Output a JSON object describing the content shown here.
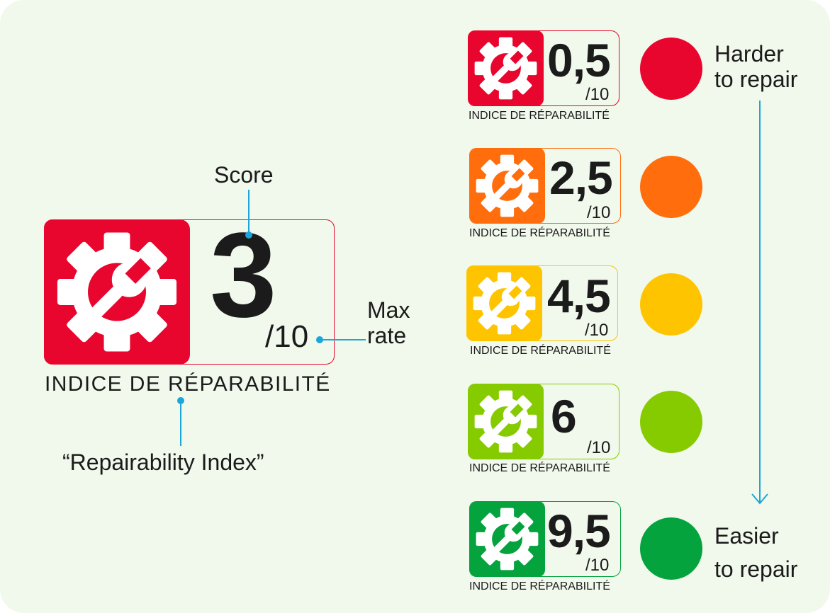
{
  "main_label": {
    "score": "3",
    "max": "/10",
    "caption": "INDICE DE RÉPARABILITÉ",
    "color": "#e8052e"
  },
  "annotations": {
    "score": "Score",
    "max_rate_line1": "Max",
    "max_rate_line2": "rate",
    "translation": "“Repairability Index”"
  },
  "scale_labels": {
    "harder_line1": "Harder",
    "harder_line2": "to repair",
    "easier_line1": "Easier",
    "easier_line2": "to repair"
  },
  "scale": [
    {
      "score": "0,5",
      "max": "/10",
      "caption": "INDICE DE RÉPARABILITÉ",
      "color": "#e8052e"
    },
    {
      "score": "2,5",
      "max": "/10",
      "caption": "INDICE DE RÉPARABILITÉ",
      "color": "#ff6d0d"
    },
    {
      "score": "4,5",
      "max": "/10",
      "caption": "INDICE DE RÉPARABILITÉ",
      "color": "#ffc400"
    },
    {
      "score": "6",
      "max": "/10",
      "caption": "INDICE DE RÉPARABILITÉ",
      "color": "#86cb00"
    },
    {
      "score": "9,5",
      "max": "/10",
      "caption": "INDICE DE RÉPARABILITÉ",
      "color": "#04a33e"
    }
  ],
  "colors": {
    "background": "#f1f8ec",
    "pointer": "#1aa6d9"
  },
  "icons": {
    "label": "gear-wrench-icon",
    "arrow": "arrow-down-icon"
  }
}
